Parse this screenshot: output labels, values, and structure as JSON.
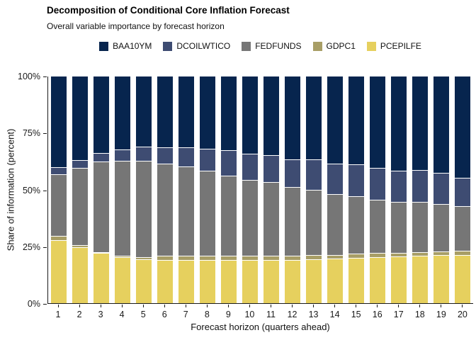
{
  "title": "Decomposition of Conditional Core Inflation Forecast",
  "subtitle": "Overall variable importance by forecast horizon",
  "axes": {
    "x_title": "Forecast horizon (quarters ahead)",
    "y_title": "Share of information (percent)",
    "y_tick_labels": [
      "0%",
      "25%",
      "50%",
      "75%",
      "100%"
    ],
    "y_tick_values": [
      0,
      25,
      50,
      75,
      100
    ]
  },
  "colors": {
    "BAA10YM": "#07254E",
    "DCOILWTICO": "#3E4C72",
    "FEDFUNDS": "#767676",
    "GDPC1": "#A89E66",
    "PCEPILFE": "#E6D05E",
    "axis": "#1a1a1a",
    "background": "#ffffff"
  },
  "chart_data": {
    "type": "bar",
    "stacked": true,
    "normalized_to_100_percent": true,
    "title": "Decomposition of Conditional Core Inflation Forecast",
    "subtitle": "Overall variable importance by forecast horizon",
    "xlabel": "Forecast horizon (quarters ahead)",
    "ylabel": "Share of information (percent)",
    "ylim": [
      0,
      100
    ],
    "grid": false,
    "legend_position": "top",
    "categories": [
      1,
      2,
      3,
      4,
      5,
      6,
      7,
      8,
      9,
      10,
      11,
      12,
      13,
      14,
      15,
      16,
      17,
      18,
      19,
      20
    ],
    "stack_order_bottom_to_top": [
      "PCEPILFE",
      "GDPC1",
      "FEDFUNDS",
      "DCOILWTICO",
      "BAA10YM"
    ],
    "series": [
      {
        "name": "BAA10YM",
        "color": "#07254E",
        "values": [
          40.2,
          37.1,
          34.0,
          32.6,
          31.3,
          31.6,
          31.6,
          32.2,
          32.9,
          34.5,
          35.0,
          36.8,
          36.9,
          38.7,
          39.2,
          40.7,
          41.8,
          41.6,
          42.8,
          44.9
        ]
      },
      {
        "name": "DCOILWTICO",
        "color": "#3E4C72",
        "values": [
          3.1,
          3.6,
          3.9,
          5.0,
          6.1,
          7.2,
          8.3,
          9.6,
          11.0,
          11.4,
          12.0,
          12.3,
          13.4,
          13.5,
          13.8,
          14.1,
          13.7,
          13.9,
          13.6,
          12.5
        ]
      },
      {
        "name": "FEDFUNDS",
        "color": "#767676",
        "values": [
          27.4,
          34.0,
          39.8,
          41.8,
          42.6,
          40.7,
          39.4,
          37.5,
          35.4,
          33.4,
          32.5,
          30.4,
          28.8,
          26.9,
          25.5,
          23.4,
          22.5,
          22.2,
          21.0,
          19.8
        ]
      },
      {
        "name": "GDPC1",
        "color": "#A89E66",
        "values": [
          1.8,
          1.0,
          0.5,
          0.7,
          1.0,
          1.7,
          1.9,
          1.9,
          1.9,
          1.8,
          1.8,
          1.7,
          1.7,
          1.4,
          1.8,
          1.9,
          1.8,
          1.6,
          1.7,
          1.9
        ]
      },
      {
        "name": "PCEPILFE",
        "color": "#E6D05E",
        "values": [
          27.5,
          24.3,
          21.8,
          19.9,
          19.0,
          18.8,
          18.8,
          18.8,
          18.8,
          18.9,
          18.7,
          18.8,
          19.2,
          19.5,
          19.7,
          19.9,
          20.2,
          20.7,
          20.9,
          20.9
        ]
      }
    ]
  }
}
